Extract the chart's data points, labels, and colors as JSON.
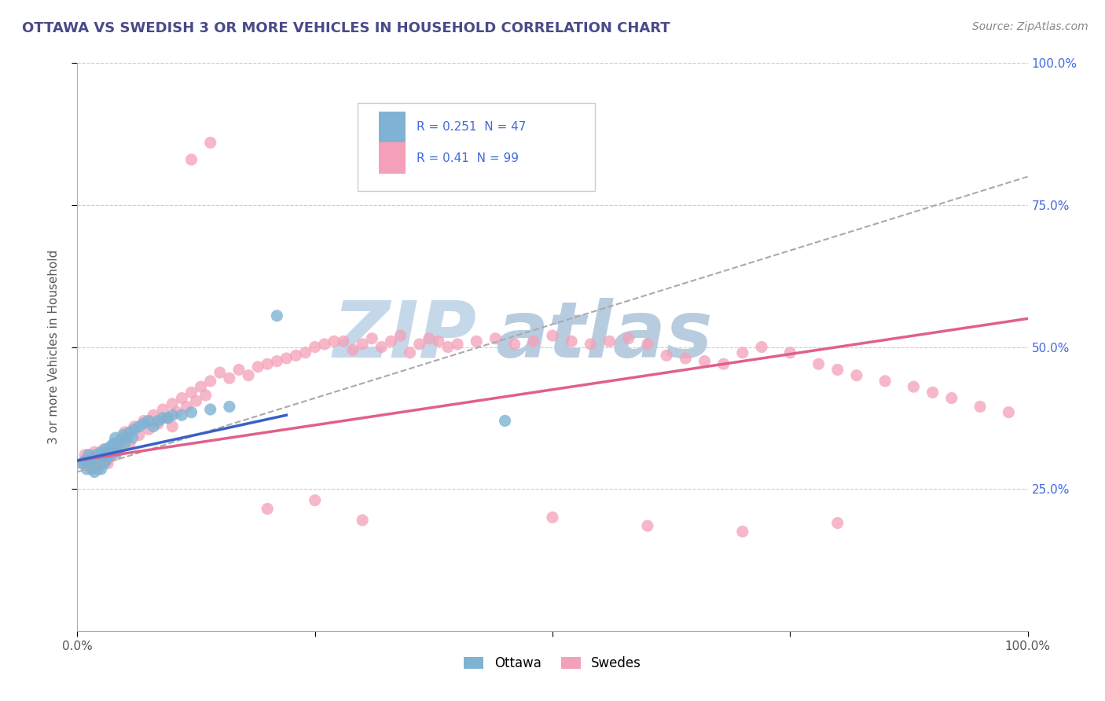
{
  "title": "OTTAWA VS SWEDISH 3 OR MORE VEHICLES IN HOUSEHOLD CORRELATION CHART",
  "source_text": "Source: ZipAtlas.com",
  "ylabel": "3 or more Vehicles in Household",
  "xlim": [
    0.0,
    1.0
  ],
  "ylim": [
    0.0,
    1.0
  ],
  "legend_entries": [
    {
      "label": "Ottawa",
      "R": 0.251,
      "N": 47
    },
    {
      "label": "Swedes",
      "R": 0.41,
      "N": 99
    }
  ],
  "ottawa_color": "#7fb3d3",
  "swedes_color": "#f4a0b8",
  "trend_ottawa_color": "#3a5fc8",
  "trend_swedes_color": "#e0608a",
  "dashed_color": "#aaaaaa",
  "watermark_zip_color": "#c5d8ea",
  "watermark_atlas_color": "#b8cce0",
  "title_color": "#4a4a8a",
  "rn_color": "#4169e1",
  "label_color": "#555555",
  "right_tick_color": "#4169e1",
  "background_color": "#ffffff",
  "grid_color": "#cccccc",
  "ottawa_scatter_x": [
    0.005,
    0.008,
    0.01,
    0.012,
    0.015,
    0.015,
    0.018,
    0.018,
    0.02,
    0.02,
    0.022,
    0.022,
    0.025,
    0.025,
    0.025,
    0.028,
    0.028,
    0.03,
    0.03,
    0.032,
    0.035,
    0.035,
    0.038,
    0.04,
    0.04,
    0.042,
    0.045,
    0.048,
    0.05,
    0.052,
    0.055,
    0.058,
    0.06,
    0.065,
    0.07,
    0.075,
    0.08,
    0.085,
    0.09,
    0.095,
    0.1,
    0.11,
    0.12,
    0.14,
    0.16,
    0.21,
    0.45
  ],
  "ottawa_scatter_y": [
    0.295,
    0.3,
    0.285,
    0.31,
    0.3,
    0.285,
    0.295,
    0.28,
    0.31,
    0.295,
    0.29,
    0.305,
    0.315,
    0.3,
    0.285,
    0.31,
    0.295,
    0.32,
    0.3,
    0.305,
    0.325,
    0.31,
    0.33,
    0.32,
    0.34,
    0.315,
    0.335,
    0.345,
    0.33,
    0.34,
    0.35,
    0.34,
    0.355,
    0.36,
    0.365,
    0.37,
    0.36,
    0.37,
    0.375,
    0.375,
    0.38,
    0.38,
    0.385,
    0.39,
    0.395,
    0.555,
    0.37
  ],
  "swedes_scatter_x": [
    0.005,
    0.008,
    0.01,
    0.012,
    0.015,
    0.018,
    0.02,
    0.022,
    0.025,
    0.028,
    0.03,
    0.032,
    0.035,
    0.038,
    0.04,
    0.042,
    0.045,
    0.048,
    0.05,
    0.055,
    0.06,
    0.065,
    0.07,
    0.075,
    0.08,
    0.085,
    0.09,
    0.095,
    0.1,
    0.105,
    0.11,
    0.115,
    0.12,
    0.125,
    0.13,
    0.135,
    0.14,
    0.15,
    0.16,
    0.17,
    0.18,
    0.19,
    0.2,
    0.21,
    0.22,
    0.23,
    0.24,
    0.25,
    0.26,
    0.27,
    0.28,
    0.29,
    0.3,
    0.31,
    0.32,
    0.33,
    0.34,
    0.35,
    0.36,
    0.37,
    0.38,
    0.39,
    0.4,
    0.42,
    0.44,
    0.46,
    0.48,
    0.5,
    0.52,
    0.54,
    0.56,
    0.58,
    0.6,
    0.62,
    0.64,
    0.66,
    0.68,
    0.7,
    0.72,
    0.75,
    0.78,
    0.8,
    0.82,
    0.85,
    0.88,
    0.9,
    0.92,
    0.95,
    0.98,
    0.1,
    0.12,
    0.14,
    0.2,
    0.25,
    0.3,
    0.5,
    0.6,
    0.7,
    0.8
  ],
  "swedes_scatter_y": [
    0.295,
    0.31,
    0.3,
    0.29,
    0.305,
    0.315,
    0.295,
    0.285,
    0.31,
    0.32,
    0.3,
    0.295,
    0.315,
    0.325,
    0.31,
    0.33,
    0.32,
    0.34,
    0.35,
    0.33,
    0.36,
    0.345,
    0.37,
    0.355,
    0.38,
    0.365,
    0.39,
    0.375,
    0.4,
    0.385,
    0.41,
    0.395,
    0.42,
    0.405,
    0.43,
    0.415,
    0.44,
    0.455,
    0.445,
    0.46,
    0.45,
    0.465,
    0.47,
    0.475,
    0.48,
    0.485,
    0.49,
    0.5,
    0.505,
    0.51,
    0.51,
    0.495,
    0.505,
    0.515,
    0.5,
    0.51,
    0.52,
    0.49,
    0.505,
    0.515,
    0.51,
    0.5,
    0.505,
    0.51,
    0.515,
    0.505,
    0.51,
    0.52,
    0.51,
    0.505,
    0.51,
    0.515,
    0.505,
    0.485,
    0.48,
    0.475,
    0.47,
    0.49,
    0.5,
    0.49,
    0.47,
    0.46,
    0.45,
    0.44,
    0.43,
    0.42,
    0.41,
    0.395,
    0.385,
    0.36,
    0.83,
    0.86,
    0.215,
    0.23,
    0.195,
    0.2,
    0.185,
    0.175,
    0.19
  ],
  "swedes_trend_x": [
    0.0,
    1.0
  ],
  "swedes_trend_y": [
    0.3,
    0.55
  ],
  "ottawa_trend_x": [
    0.0,
    0.22
  ],
  "ottawa_trend_y": [
    0.3,
    0.38
  ],
  "dashed_trend_x": [
    0.0,
    1.0
  ],
  "dashed_trend_y": [
    0.28,
    0.8
  ]
}
